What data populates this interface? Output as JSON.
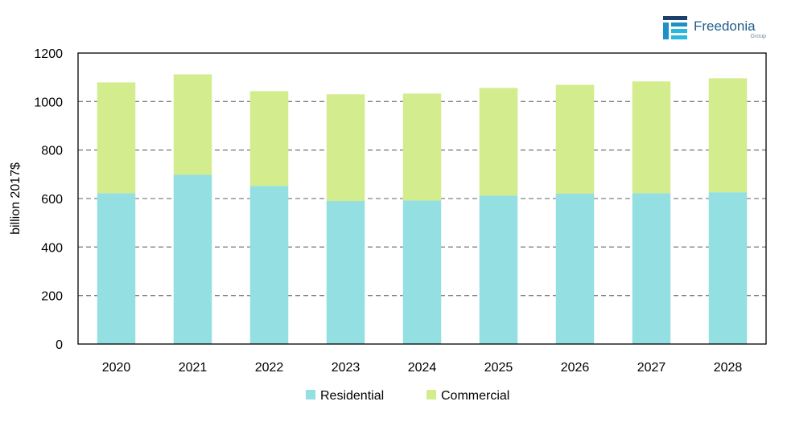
{
  "brand": {
    "name": "Freedonia",
    "sub": "Group"
  },
  "chart_data": {
    "type": "bar",
    "stacked": true,
    "categories": [
      "2020",
      "2021",
      "2022",
      "2023",
      "2024",
      "2025",
      "2026",
      "2027",
      "2028"
    ],
    "series": [
      {
        "name": "Residential",
        "color": "#93dfe1",
        "values": [
          622,
          698,
          652,
          590,
          592,
          612,
          620,
          622,
          626
        ]
      },
      {
        "name": "Commercial",
        "color": "#d3ec8e",
        "values": [
          457,
          414,
          391,
          440,
          441,
          444,
          449,
          461,
          470
        ]
      }
    ],
    "ylabel": "billion 2017$",
    "xlabel": "",
    "ylim": [
      0,
      1200
    ],
    "yticks": [
      0,
      200,
      400,
      600,
      800,
      1000,
      1200
    ],
    "grid": "horizontal-dashed",
    "legend": "bottom"
  }
}
